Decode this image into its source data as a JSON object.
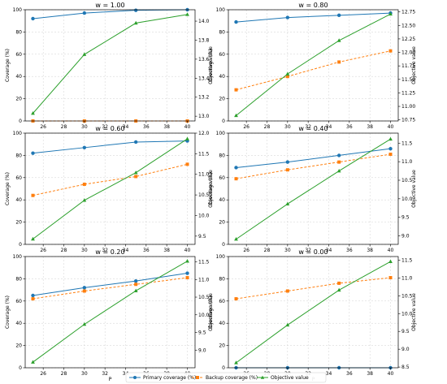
{
  "chart_data": {
    "type": "line",
    "xlabel": "P",
    "ylabel_left": "Coverage (%)",
    "ylabel_right": "Objective value",
    "x": [
      25,
      30,
      35,
      40
    ],
    "x_ticks": [
      26,
      28,
      30,
      32,
      34,
      36,
      38,
      40
    ],
    "xlim": [
      24.25,
      40.75
    ],
    "ylim_left": [
      0,
      100
    ],
    "y_ticks_left": [
      0,
      20,
      40,
      60,
      80,
      100
    ],
    "grid": true,
    "legend_placement": "bottom-center",
    "colors": {
      "primary": "#1f77b4",
      "backup": "#ff7f0e",
      "objective": "#2ca02c"
    },
    "legend": [
      {
        "key": "primary",
        "label": "Primary coverage (%)",
        "marker": "circle",
        "dash": "solid"
      },
      {
        "key": "backup",
        "label": "Backup coverage (%)",
        "marker": "square",
        "dash": "dashed"
      },
      {
        "key": "objective",
        "label": "Objective value",
        "marker": "triangle",
        "dash": "solid"
      }
    ],
    "panels": [
      {
        "title": "w = 1.00",
        "primary": [
          92,
          97,
          99.5,
          100
        ],
        "backup": [
          0,
          0,
          0,
          0
        ],
        "objective": [
          13.03,
          13.65,
          13.98,
          14.07
        ],
        "ylim_right": [
          12.95,
          14.12
        ],
        "y_ticks_right": [
          "13.0",
          "13.2",
          "13.4",
          "13.6",
          "13.8",
          "14.0"
        ],
        "y_tick_values_right": [
          13.0,
          13.2,
          13.4,
          13.6,
          13.8,
          14.0
        ]
      },
      {
        "title": "w = 0.80",
        "primary": [
          89,
          93,
          95,
          97
        ],
        "backup": [
          28,
          40,
          53,
          63
        ],
        "objective": [
          10.83,
          11.6,
          12.22,
          12.71
        ],
        "ylim_right": [
          10.73,
          12.79
        ],
        "y_ticks_right": [
          "10.75",
          "11.00",
          "11.25",
          "11.50",
          "11.75",
          "12.00",
          "12.25",
          "12.50",
          "12.75"
        ],
        "y_tick_values_right": [
          10.75,
          11.0,
          11.25,
          11.5,
          11.75,
          12.0,
          12.25,
          12.5,
          12.75
        ]
      },
      {
        "title": "w = 0.60",
        "primary": [
          82,
          87,
          92,
          93
        ],
        "backup": [
          44,
          54,
          61,
          72
        ],
        "objective": [
          9.43,
          10.37,
          11.04,
          11.86
        ],
        "ylim_right": [
          9.3,
          12.0
        ],
        "y_ticks_right": [
          "9.5",
          "10.0",
          "10.5",
          "11.0",
          "11.5",
          "12.0"
        ],
        "y_tick_values_right": [
          9.5,
          10.0,
          10.5,
          11.0,
          11.5,
          12.0
        ]
      },
      {
        "title": "w = 0.40",
        "primary": [
          69,
          74,
          80,
          86
        ],
        "backup": [
          59,
          67,
          74,
          81
        ],
        "objective": [
          8.91,
          9.86,
          10.75,
          11.61
        ],
        "ylim_right": [
          8.77,
          11.77
        ],
        "y_ticks_right": [
          "9.0",
          "9.5",
          "10.0",
          "10.5",
          "11.0",
          "11.5"
        ],
        "y_tick_values_right": [
          9.0,
          9.5,
          10.0,
          10.5,
          11.0,
          11.5
        ]
      },
      {
        "title": "w = 0.20",
        "primary": [
          65,
          72,
          78,
          85
        ],
        "backup": [
          62,
          69,
          75,
          81
        ],
        "objective": [
          8.66,
          9.73,
          10.68,
          11.52
        ],
        "ylim_right": [
          8.5,
          11.65
        ],
        "y_ticks_right": [
          "9.0",
          "9.5",
          "10.0",
          "10.5",
          "11.0",
          "11.5"
        ],
        "y_tick_values_right": [
          9.0,
          9.5,
          10.0,
          10.5,
          11.0,
          11.5
        ]
      },
      {
        "title": "w = 0.00",
        "primary": [
          0,
          0,
          0,
          0
        ],
        "backup": [
          62,
          69,
          76,
          81
        ],
        "objective": [
          8.62,
          9.68,
          10.66,
          11.46
        ],
        "ylim_right": [
          8.48,
          11.6
        ],
        "y_ticks_right": [
          "8.5",
          "9.0",
          "9.5",
          "10.0",
          "10.5",
          "11.0",
          "11.5"
        ],
        "y_tick_values_right": [
          8.5,
          9.0,
          9.5,
          10.0,
          10.5,
          11.0,
          11.5
        ]
      }
    ]
  }
}
